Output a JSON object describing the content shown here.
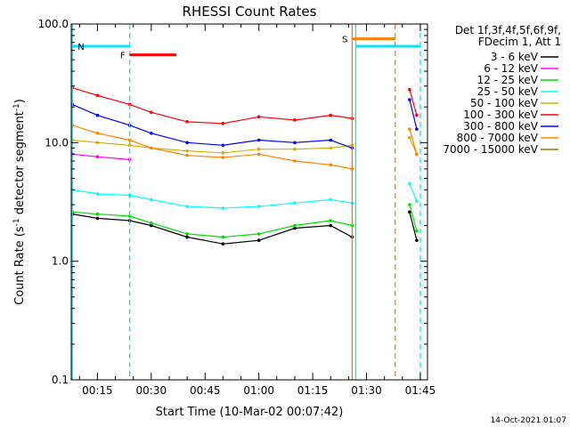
{
  "chart_data": {
    "type": "line",
    "title": "RHESSI Count Rates",
    "xlabel": "Start Time (10-Mar-02 00:07:42)",
    "ylabel": "Count Rate (s",
    "ylabel_sup1": "-1",
    "ylabel_mid": " detector segment",
    "ylabel_sup2": "-1",
    "ylabel_end": ")",
    "yscale": "log",
    "ylim": [
      0.1,
      100.0
    ],
    "xlim": [
      "00:07:42",
      "01:47:00"
    ],
    "y_ticks": [
      "0.1",
      "1.0",
      "10.0",
      "100.0"
    ],
    "x_ticks": [
      "00:15",
      "00:30",
      "00:45",
      "01:00",
      "01:15",
      "01:30",
      "01:45"
    ],
    "legend_header": [
      "Det 1f,3f,4f,5f,6f,9f,",
      "FDecim 1, Att 1"
    ],
    "legend_position": "right",
    "footer_date": "14-Oct-2021 01:07",
    "series": [
      {
        "name": "3 - 6 keV",
        "color": "#000000",
        "x": [
          "00:08",
          "00:15",
          "00:24",
          "00:30",
          "00:40",
          "00:50",
          "01:00",
          "01:10",
          "01:20",
          "01:26",
          "01:42",
          "01:44"
        ],
        "values": [
          2.5,
          2.3,
          2.2,
          2.0,
          1.6,
          1.4,
          1.5,
          1.9,
          2.0,
          1.6,
          2.6,
          1.5
        ]
      },
      {
        "name": "6 - 12 keV",
        "color": "#ff00ff",
        "x": [
          "00:08",
          "00:15",
          "00:24"
        ],
        "values": [
          8.0,
          7.6,
          7.2
        ]
      },
      {
        "name": "12 - 25 keV",
        "color": "#00dd00",
        "x": [
          "00:08",
          "00:15",
          "00:24",
          "00:30",
          "00:40",
          "00:50",
          "01:00",
          "01:10",
          "01:20",
          "01:26",
          "01:42",
          "01:44"
        ],
        "values": [
          2.6,
          2.5,
          2.4,
          2.1,
          1.7,
          1.6,
          1.7,
          2.0,
          2.2,
          2.0,
          3.0,
          1.8
        ]
      },
      {
        "name": "25 - 50 keV",
        "color": "#00ffff",
        "x": [
          "00:08",
          "00:15",
          "00:24",
          "00:30",
          "00:40",
          "00:50",
          "01:00",
          "01:10",
          "01:20",
          "01:26",
          "01:42",
          "01:44"
        ],
        "values": [
          4.0,
          3.7,
          3.6,
          3.3,
          2.9,
          2.8,
          2.9,
          3.1,
          3.3,
          3.1,
          4.5,
          3.2
        ]
      },
      {
        "name": "50 - 100 keV",
        "color": "#d4b000",
        "x": [
          "00:08",
          "00:15",
          "00:24",
          "00:30",
          "00:40",
          "00:50",
          "01:00",
          "01:10",
          "01:20",
          "01:26",
          "01:42",
          "01:44"
        ],
        "values": [
          10.5,
          10.0,
          9.5,
          9.0,
          8.5,
          8.2,
          8.8,
          8.8,
          9.0,
          9.5,
          11.0,
          8.0
        ]
      },
      {
        "name": "100 - 300 keV",
        "color": "#ff0000",
        "x": [
          "00:08",
          "00:15",
          "00:24",
          "00:30",
          "00:40",
          "00:50",
          "01:00",
          "01:10",
          "01:20",
          "01:26",
          "01:42",
          "01:44"
        ],
        "values": [
          29.0,
          25.0,
          21.0,
          18.0,
          15.0,
          14.5,
          16.5,
          15.5,
          17.0,
          16.0,
          28.0,
          17.0
        ]
      },
      {
        "name": "300 - 800 keV",
        "color": "#0000ff",
        "x": [
          "00:08",
          "00:15",
          "00:24",
          "00:30",
          "00:40",
          "00:50",
          "01:00",
          "01:10",
          "01:20",
          "01:26",
          "01:42",
          "01:44"
        ],
        "values": [
          21.0,
          17.0,
          14.0,
          12.0,
          10.0,
          9.5,
          10.5,
          10.0,
          10.5,
          9.0,
          23.0,
          13.0
        ]
      },
      {
        "name": "800 - 7000 keV",
        "color": "#ff8000",
        "x": [
          "00:08",
          "00:15",
          "00:24",
          "00:30",
          "00:40",
          "00:50",
          "01:00",
          "01:10",
          "01:20",
          "01:26",
          "01:42",
          "01:44"
        ],
        "values": [
          14.0,
          12.0,
          10.5,
          9.0,
          7.8,
          7.5,
          8.0,
          7.0,
          6.5,
          6.0,
          13.0,
          8.0
        ]
      },
      {
        "name": "7000 - 15000 keV",
        "color": "#808000",
        "x": [],
        "values": []
      }
    ],
    "annotations": {
      "bars": [
        {
          "label": "N",
          "color": "#00e5ff",
          "level": 65,
          "start": "00:08",
          "end": "00:24"
        },
        {
          "label": "F",
          "color": "#ff0000",
          "level": 55,
          "start": "00:24",
          "end": "00:37"
        },
        {
          "label": "S",
          "color": "#ff8000",
          "level": 75,
          "start": "01:26",
          "end": "01:38"
        },
        {
          "label": "",
          "color": "#00e5ff",
          "level": 65,
          "start": "01:27",
          "end": "01:45"
        }
      ],
      "vlines": [
        {
          "at": "00:08",
          "color": "#00e5ff",
          "style": "solid"
        },
        {
          "at": "00:24",
          "color": "#00e5ff",
          "style": "dashed"
        },
        {
          "at": "01:26",
          "color": "#ff8000",
          "style": "solid"
        },
        {
          "at": "01:27",
          "color": "#00e5ff",
          "style": "solid"
        },
        {
          "at": "01:38",
          "color": "#ff8000",
          "style": "dashed"
        },
        {
          "at": "01:45",
          "color": "#00e5ff",
          "style": "dashed"
        }
      ]
    }
  }
}
